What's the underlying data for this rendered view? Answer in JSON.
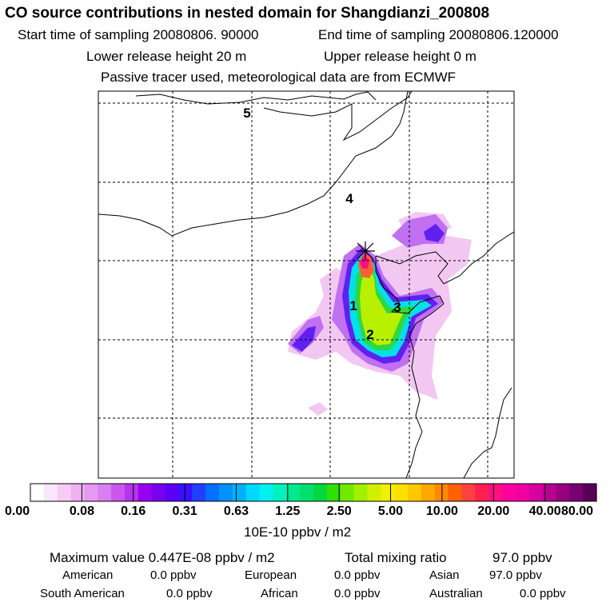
{
  "header": {
    "title": "CO  source contributions in nested domain for Shangdianzi_200808",
    "start_label": "Start time of sampling 20080806. 90000",
    "end_label": "End time of sampling 20080806.120000",
    "lower_label": "Lower release height   20 m",
    "upper_label": "Upper release height    0 m",
    "tracer_note": "Passive tracer used, meteorological data are from ECMWF"
  },
  "map": {
    "region_labels": [
      "1",
      "2",
      "3",
      "4",
      "5"
    ],
    "receptor_marker": "receptor-marker"
  },
  "colorbar": {
    "tick_labels": [
      "0.00",
      "0.08",
      "0.16",
      "0.31",
      "0.63",
      "1.25",
      "2.50",
      "5.00",
      "10.00",
      "20.00",
      "40.00",
      "80.00"
    ],
    "unit": "10E-10 ppbv / m2",
    "colors": [
      "#ffffff",
      "#fbe6fb",
      "#f6ccf6",
      "#efb2ef",
      "#e699f0",
      "#d97ff0",
      "#cc55f0",
      "#b833f0",
      "#9a00f0",
      "#7a00f0",
      "#5a00f5",
      "#3a10ff",
      "#2040ff",
      "#0070ff",
      "#0090ff",
      "#00b0ff",
      "#00d8ff",
      "#00f0f0",
      "#00f0c0",
      "#00e890",
      "#00e070",
      "#00d840",
      "#30e000",
      "#70e800",
      "#a0f000",
      "#d0f000",
      "#f0f000",
      "#ffe000",
      "#ffc800",
      "#ffa800",
      "#ff8800",
      "#ff6000",
      "#ff4040",
      "#ff2050",
      "#ff1080",
      "#ff00a0",
      "#f000a0",
      "#d800a0",
      "#b80090",
      "#980080",
      "#780070",
      "#580058"
    ]
  },
  "footer": {
    "max_label": "Maximum value  0.447E-08 ppbv / m2",
    "total_label": "Total mixing ratio",
    "total_value": "97.0 ppbv",
    "sources": [
      {
        "name": "American",
        "value": "0.0 ppbv"
      },
      {
        "name": "European",
        "value": "0.0 ppbv"
      },
      {
        "name": "Asian",
        "value": "97.0 ppbv"
      },
      {
        "name": "South American",
        "value": "0.0 ppbv"
      },
      {
        "name": "African",
        "value": "0.0 ppbv"
      },
      {
        "name": "Australian",
        "value": "0.0 ppbv"
      }
    ]
  }
}
